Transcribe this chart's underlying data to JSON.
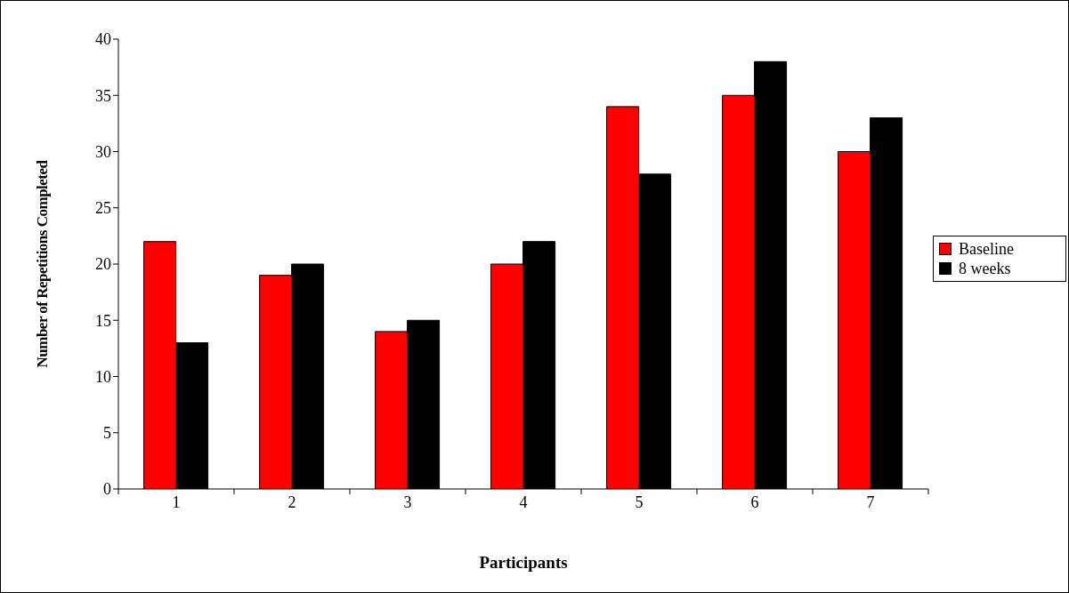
{
  "chart_data": {
    "type": "bar",
    "xlabel": "Participants",
    "ylabel": "Number of Repetitions Completed",
    "categories": [
      "1",
      "2",
      "3",
      "4",
      "5",
      "6",
      "7"
    ],
    "series": [
      {
        "name": "Baseline",
        "color": "#ff0000",
        "values": [
          22,
          19,
          14,
          20,
          34,
          35,
          30
        ]
      },
      {
        "name": "8 weeks",
        "color": "#000000",
        "values": [
          13,
          20,
          15,
          22,
          28,
          38,
          33
        ]
      }
    ],
    "ylim": [
      0,
      40
    ],
    "yticks": [
      0,
      5,
      10,
      15,
      20,
      25,
      30,
      35,
      40
    ],
    "grid": false,
    "legend": "right"
  }
}
